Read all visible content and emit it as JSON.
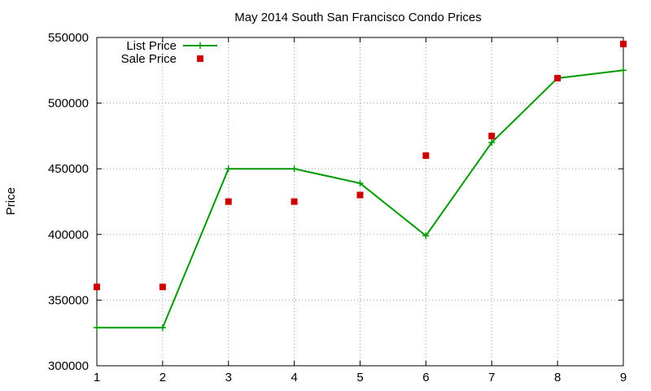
{
  "chart_data": {
    "type": "line",
    "title": "May 2014 South San Francisco Condo Prices",
    "xlabel": "",
    "ylabel": "Price",
    "x": [
      1,
      2,
      3,
      4,
      5,
      6,
      7,
      8,
      9
    ],
    "xlim": [
      1,
      9
    ],
    "ylim": [
      300000,
      550000
    ],
    "xticks": [
      "1",
      "2",
      "3",
      "4",
      "5",
      "6",
      "7",
      "8",
      "9"
    ],
    "yticks": [
      "300000",
      "350000",
      "400000",
      "450000",
      "500000",
      "550000"
    ],
    "grid": true,
    "legend_position": "top-left",
    "series": [
      {
        "name": "List Price",
        "style": "line+cross",
        "color": "#009900",
        "values": [
          329000,
          329000,
          450000,
          450000,
          439000,
          399000,
          470000,
          519000,
          525000
        ]
      },
      {
        "name": "Sale Price",
        "style": "square-points",
        "color": "#cc0000",
        "values": [
          360000,
          360000,
          425000,
          425000,
          430000,
          460000,
          475000,
          519000,
          545000
        ]
      }
    ]
  }
}
